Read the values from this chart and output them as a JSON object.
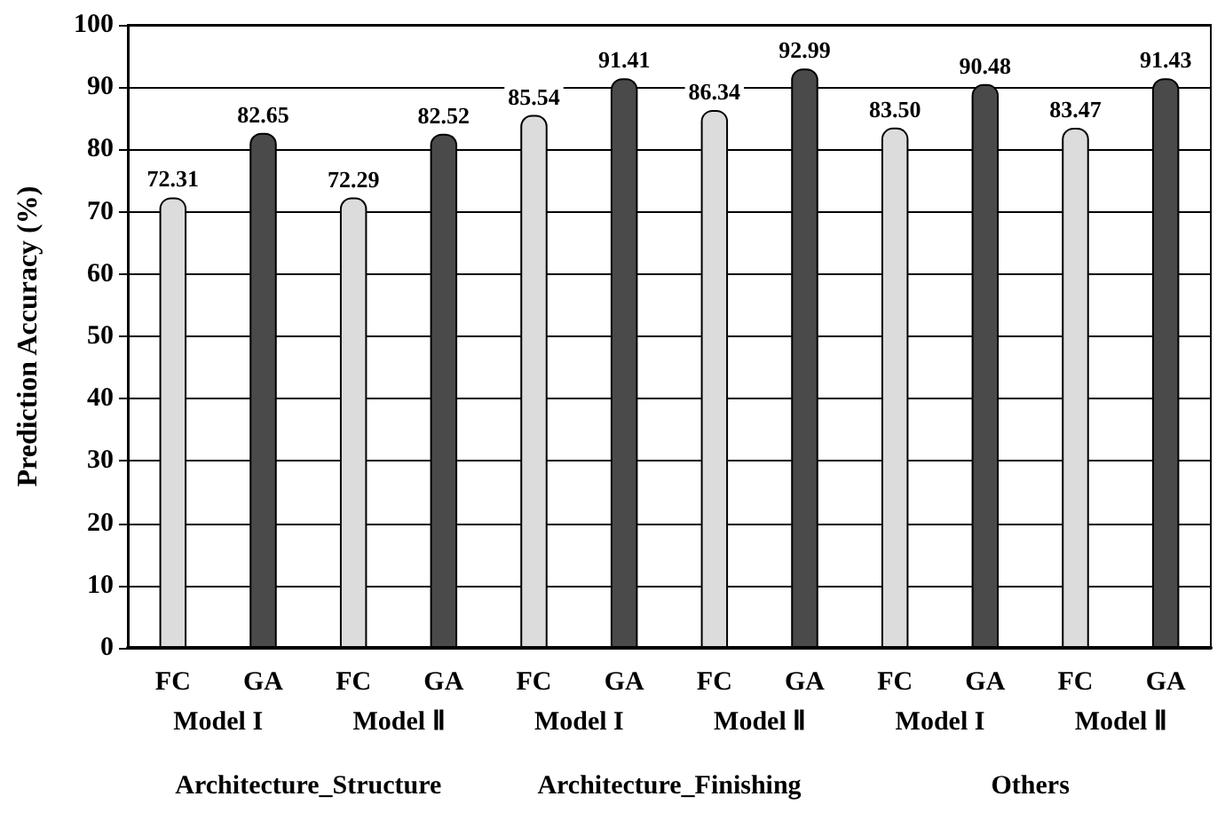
{
  "chart_data": {
    "type": "bar",
    "ylabel": "Prediction Accuracy (%)",
    "categories": [
      "FC",
      "GA",
      "FC",
      "GA",
      "FC",
      "GA",
      "FC",
      "GA",
      "FC",
      "GA",
      "FC",
      "GA"
    ],
    "values": [
      72.31,
      82.65,
      72.29,
      82.52,
      85.54,
      91.41,
      86.34,
      92.99,
      83.5,
      90.48,
      83.47,
      91.43
    ],
    "value_labels": [
      "72.31",
      "82.65",
      "72.29",
      "82.52",
      "85.54",
      "91.41",
      "86.34",
      "92.99",
      "83.50",
      "90.48",
      "83.47",
      "91.43"
    ],
    "colors": [
      "#dcdcdc",
      "#4a4a4a",
      "#dcdcdc",
      "#4a4a4a",
      "#dcdcdc",
      "#4a4a4a",
      "#dcdcdc",
      "#4a4a4a",
      "#dcdcdc",
      "#4a4a4a",
      "#dcdcdc",
      "#4a4a4a"
    ],
    "ylim": [
      0,
      100
    ],
    "yticks": [
      0,
      10,
      20,
      30,
      40,
      50,
      60,
      70,
      80,
      90,
      100
    ],
    "grid": "y",
    "annotations": [
      "Model I",
      "Model Ⅱ",
      "Model I",
      "Model Ⅱ",
      "Model I",
      "Model Ⅱ",
      "Architecture_Structure",
      "Architecture_Finishing",
      "Others"
    ]
  }
}
